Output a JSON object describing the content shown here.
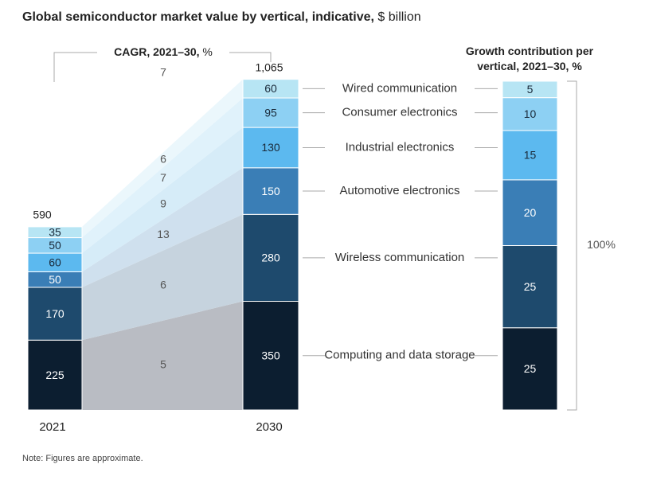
{
  "chart_data": {
    "type": "stacked-bar-bridge",
    "title": "Global semiconductor market value by vertical, indicative,",
    "title_unit": "$ billion",
    "categories": [
      "2021",
      "2030"
    ],
    "totals": [
      590,
      1065
    ],
    "totals_value_labels": [
      "590",
      "1,065"
    ],
    "cagr_title": "CAGR, 2021–30,",
    "cagr_title_unit": "%",
    "cagr_total": 7,
    "contribution_title": "Growth contribution per vertical, 2021–30,",
    "contribution_title_unit": "%",
    "contribution_total": {
      "value": 100,
      "label": "100%"
    },
    "series": [
      {
        "name": "Computing and data storage",
        "color": "#0c1e30",
        "area_color": "#b9bcc3",
        "values": [
          225,
          350
        ],
        "cagr": 5,
        "contribution": 25
      },
      {
        "name": "Wireless communication",
        "color": "#1e4a6d",
        "area_color": "#c6d3de",
        "values": [
          170,
          280
        ],
        "cagr": 6,
        "contribution": 25
      },
      {
        "name": "Automotive electronics",
        "color": "#3a7eb6",
        "area_color": "#cfe0ee",
        "values": [
          50,
          150
        ],
        "cagr": 13,
        "contribution": 20
      },
      {
        "name": "Industrial electronics",
        "color": "#5cb9ef",
        "area_color": "#d6ecf8",
        "values": [
          60,
          130
        ],
        "cagr": 9,
        "contribution": 15
      },
      {
        "name": "Consumer electronics",
        "color": "#8dd0f3",
        "area_color": "#e0f2fb",
        "values": [
          50,
          95
        ],
        "cagr": 7,
        "contribution": 10
      },
      {
        "name": "Wired communication",
        "color": "#b7e5f4",
        "area_color": "#ebf7fc",
        "values": [
          35,
          60
        ],
        "cagr": 6,
        "contribution": 5
      }
    ],
    "note": "Note: Figures are approximate."
  }
}
